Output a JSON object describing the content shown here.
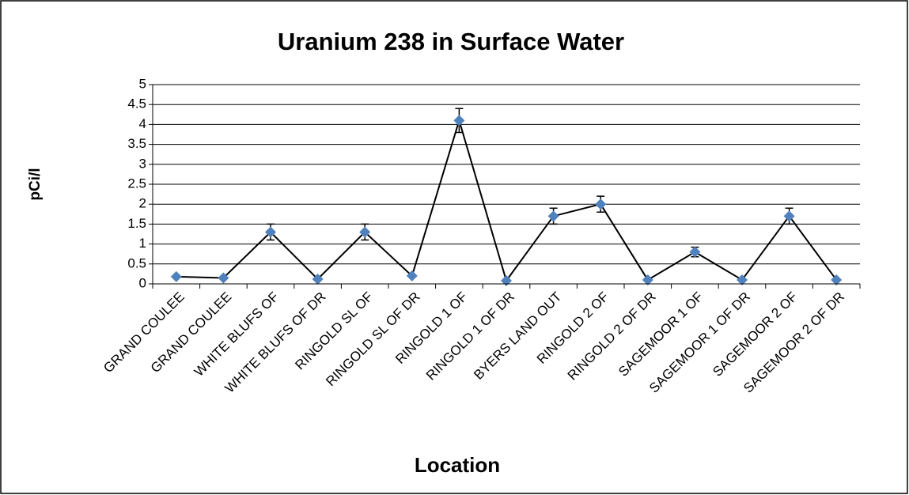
{
  "chart_data": {
    "type": "line",
    "title": "Uranium 238 in Surface Water",
    "xlabel": "Location",
    "ylabel": "pCi/l",
    "categories": [
      "GRAND COULEE",
      "GRAND COULEE",
      "WHITE BLUFS OF",
      "WHITE BLUFS OF DR",
      "RINGOLD SL OF",
      "RINGOLD SL OF DR",
      "RINGOLD 1 OF",
      "RINGOLD 1 OF DR",
      "BYERS LAND OUT",
      "RINGOLD 2 OF",
      "RINGOLD 2 OF DR",
      "SAGEMOOR 1 OF",
      "SAGEMOOR 1 OF DR",
      "SAGEMOOR 2 OF",
      "SAGEMOOR 2 OF DR"
    ],
    "series": [
      {
        "name": "Uranium 238",
        "color": "#4f81bd",
        "line_color": "#000000",
        "values": [
          0.18,
          0.15,
          1.3,
          0.12,
          1.3,
          0.2,
          4.1,
          0.08,
          1.7,
          2.0,
          0.1,
          0.8,
          0.1,
          1.7,
          0.1
        ],
        "errors": [
          0,
          0,
          0.2,
          0,
          0.2,
          0,
          0.3,
          0,
          0.2,
          0.2,
          0,
          0.12,
          0,
          0.2,
          0
        ]
      }
    ],
    "ylim": [
      0,
      5
    ],
    "yticks": [
      0,
      0.5,
      1,
      1.5,
      2,
      2.5,
      3,
      3.5,
      4,
      4.5,
      5
    ],
    "grid": true
  }
}
